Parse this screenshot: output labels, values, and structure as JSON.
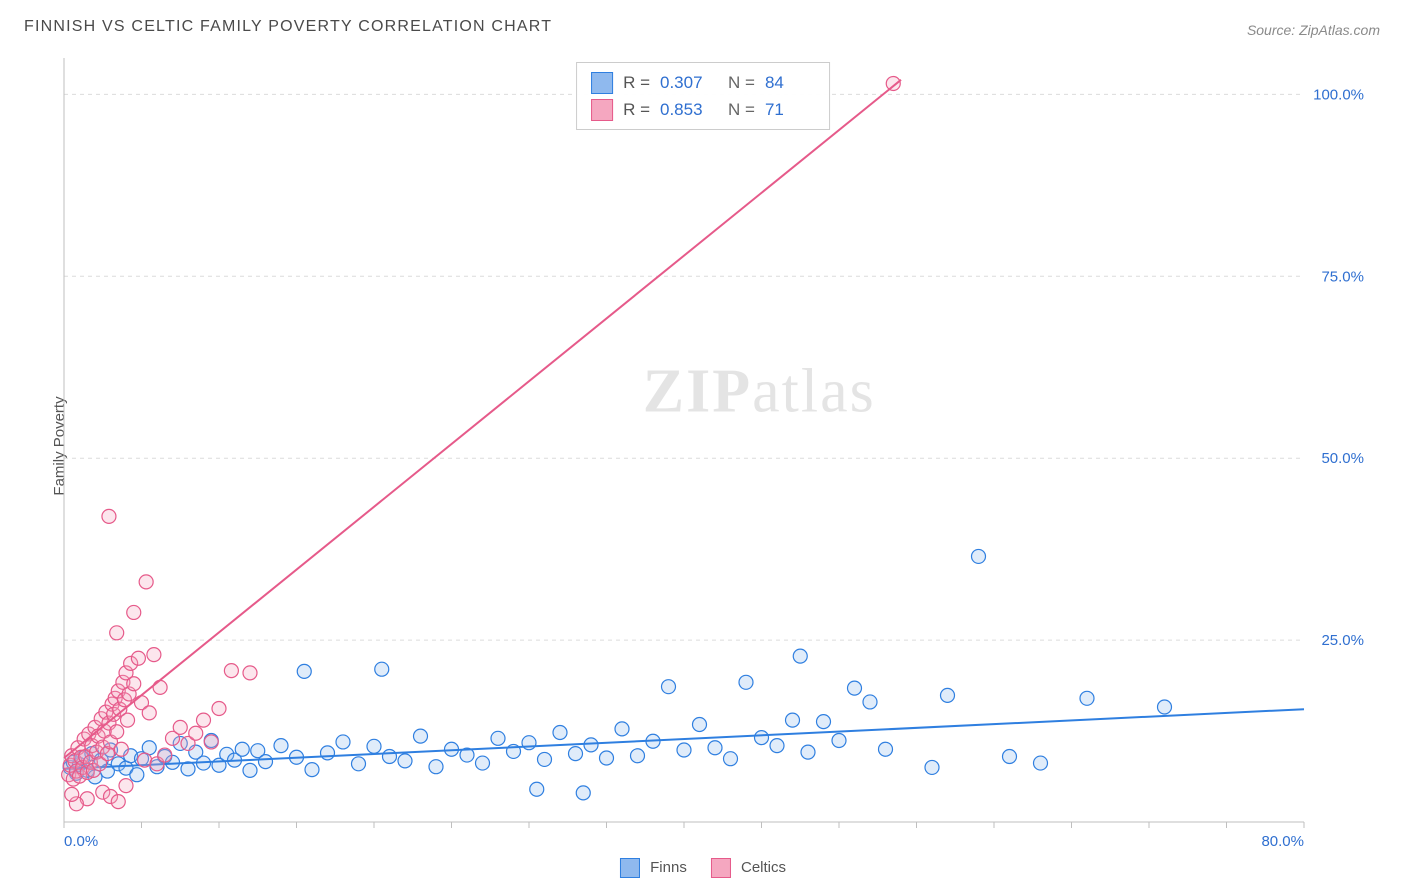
{
  "title": "FINNISH VS CELTIC FAMILY POVERTY CORRELATION CHART",
  "source_label": "Source: ZipAtlas.com",
  "ylabel": "Family Poverty",
  "watermark": {
    "zip": "ZIP",
    "atlas": "atlas"
  },
  "chart": {
    "type": "scatter",
    "xlim": [
      0,
      80
    ],
    "ylim": [
      0,
      105
    ],
    "xtick_step": 20,
    "xticks": [
      "0.0%",
      "80.0%"
    ],
    "ytick_step": 25,
    "yticks": [
      "25.0%",
      "50.0%",
      "75.0%",
      "100.0%"
    ],
    "grid_color": "#dcdcdc",
    "axis_color": "#bfbfbf",
    "background_color": "#ffffff",
    "tick_label_color": "#2f6fd0",
    "tick_label_fontsize": 15,
    "marker_radius": 7,
    "marker_stroke_width": 1.2,
    "marker_fill_opacity": 0.28,
    "trend_line_width": 2,
    "series": [
      {
        "id": "finns",
        "label": "Finns",
        "color": "#2f7fe0",
        "fill": "#8fb9ee",
        "R": "0.307",
        "N": "84",
        "trend": {
          "x1": 0,
          "y1": 7.3,
          "x2": 80,
          "y2": 15.5
        },
        "points": [
          [
            0.4,
            7.5
          ],
          [
            0.6,
            8.2
          ],
          [
            0.8,
            6.7
          ],
          [
            1.0,
            7.9
          ],
          [
            1.2,
            8.8
          ],
          [
            1.5,
            7.1
          ],
          [
            1.8,
            9.4
          ],
          [
            2.0,
            6.2
          ],
          [
            2.4,
            8.5
          ],
          [
            2.8,
            7.0
          ],
          [
            3.0,
            9.9
          ],
          [
            3.5,
            8.0
          ],
          [
            4.0,
            7.4
          ],
          [
            4.3,
            9.1
          ],
          [
            4.7,
            6.5
          ],
          [
            5.0,
            8.7
          ],
          [
            5.5,
            10.2
          ],
          [
            6.0,
            7.6
          ],
          [
            6.5,
            9.0
          ],
          [
            7.0,
            8.2
          ],
          [
            7.5,
            10.8
          ],
          [
            8.0,
            7.3
          ],
          [
            8.5,
            9.6
          ],
          [
            9.0,
            8.1
          ],
          [
            9.5,
            11.2
          ],
          [
            10.0,
            7.8
          ],
          [
            10.5,
            9.3
          ],
          [
            11.0,
            8.5
          ],
          [
            11.5,
            10.0
          ],
          [
            12.0,
            7.1
          ],
          [
            12.5,
            9.8
          ],
          [
            13.0,
            8.3
          ],
          [
            14.0,
            10.5
          ],
          [
            15.0,
            8.9
          ],
          [
            15.5,
            20.7
          ],
          [
            16.0,
            7.2
          ],
          [
            17.0,
            9.5
          ],
          [
            18.0,
            11.0
          ],
          [
            19.0,
            8.0
          ],
          [
            20.0,
            10.4
          ],
          [
            20.5,
            21.0
          ],
          [
            21.0,
            9.0
          ],
          [
            22.0,
            8.4
          ],
          [
            23.0,
            11.8
          ],
          [
            24.0,
            7.6
          ],
          [
            25.0,
            10.0
          ],
          [
            26.0,
            9.2
          ],
          [
            27.0,
            8.1
          ],
          [
            28.0,
            11.5
          ],
          [
            29.0,
            9.7
          ],
          [
            30.0,
            10.9
          ],
          [
            30.5,
            4.5
          ],
          [
            31.0,
            8.6
          ],
          [
            32.0,
            12.3
          ],
          [
            33.0,
            9.4
          ],
          [
            33.5,
            4.0
          ],
          [
            34.0,
            10.6
          ],
          [
            35.0,
            8.8
          ],
          [
            36.0,
            12.8
          ],
          [
            37.0,
            9.1
          ],
          [
            38.0,
            11.1
          ],
          [
            39.0,
            18.6
          ],
          [
            40.0,
            9.9
          ],
          [
            41.0,
            13.4
          ],
          [
            42.0,
            10.2
          ],
          [
            43.0,
            8.7
          ],
          [
            44.0,
            19.2
          ],
          [
            45.0,
            11.6
          ],
          [
            46.0,
            10.5
          ],
          [
            47.0,
            14.0
          ],
          [
            47.5,
            22.8
          ],
          [
            48.0,
            9.6
          ],
          [
            49.0,
            13.8
          ],
          [
            50.0,
            11.2
          ],
          [
            51.0,
            18.4
          ],
          [
            52.0,
            16.5
          ],
          [
            53.0,
            10.0
          ],
          [
            56.0,
            7.5
          ],
          [
            57.0,
            17.4
          ],
          [
            59.0,
            36.5
          ],
          [
            61.0,
            9.0
          ],
          [
            63.0,
            8.1
          ],
          [
            66.0,
            17.0
          ],
          [
            71.0,
            15.8
          ]
        ]
      },
      {
        "id": "celtics",
        "label": "Celtics",
        "color": "#e65a8a",
        "fill": "#f5a7c0",
        "R": "0.853",
        "N": "71",
        "trend": {
          "x1": 0,
          "y1": 8.8,
          "x2": 54,
          "y2": 102
        },
        "points": [
          [
            0.3,
            6.5
          ],
          [
            0.4,
            7.8
          ],
          [
            0.5,
            9.1
          ],
          [
            0.6,
            5.9
          ],
          [
            0.7,
            8.4
          ],
          [
            0.8,
            7.0
          ],
          [
            0.9,
            10.2
          ],
          [
            1.0,
            6.3
          ],
          [
            1.1,
            8.9
          ],
          [
            1.2,
            7.5
          ],
          [
            1.3,
            11.4
          ],
          [
            1.4,
            9.0
          ],
          [
            1.5,
            6.8
          ],
          [
            1.6,
            12.1
          ],
          [
            1.7,
            8.2
          ],
          [
            1.8,
            10.5
          ],
          [
            1.9,
            7.1
          ],
          [
            2.0,
            13.0
          ],
          [
            2.1,
            9.6
          ],
          [
            2.2,
            11.8
          ],
          [
            2.3,
            8.0
          ],
          [
            2.4,
            14.2
          ],
          [
            2.5,
            10.3
          ],
          [
            2.6,
            12.5
          ],
          [
            2.7,
            15.1
          ],
          [
            2.8,
            9.4
          ],
          [
            2.9,
            13.6
          ],
          [
            3.0,
            11.0
          ],
          [
            3.1,
            16.2
          ],
          [
            3.2,
            14.8
          ],
          [
            3.3,
            17.0
          ],
          [
            3.4,
            12.4
          ],
          [
            3.5,
            18.0
          ],
          [
            3.6,
            15.5
          ],
          [
            3.7,
            10.0
          ],
          [
            3.8,
            19.2
          ],
          [
            3.9,
            16.8
          ],
          [
            4.0,
            20.5
          ],
          [
            4.1,
            14.0
          ],
          [
            4.2,
            17.6
          ],
          [
            4.3,
            21.8
          ],
          [
            4.5,
            19.0
          ],
          [
            4.8,
            22.5
          ],
          [
            5.0,
            16.4
          ],
          [
            5.2,
            8.5
          ],
          [
            5.5,
            15.0
          ],
          [
            5.8,
            23.0
          ],
          [
            6.0,
            8.0
          ],
          [
            6.2,
            18.5
          ],
          [
            6.5,
            9.2
          ],
          [
            7.0,
            11.5
          ],
          [
            7.5,
            13.0
          ],
          [
            8.0,
            10.8
          ],
          [
            8.5,
            12.2
          ],
          [
            9.0,
            14.0
          ],
          [
            9.5,
            11.0
          ],
          [
            10.0,
            15.6
          ],
          [
            2.5,
            4.1
          ],
          [
            3.0,
            3.5
          ],
          [
            3.5,
            2.8
          ],
          [
            4.0,
            5.0
          ],
          [
            1.5,
            3.2
          ],
          [
            0.8,
            2.5
          ],
          [
            0.5,
            3.8
          ],
          [
            3.4,
            26.0
          ],
          [
            4.5,
            28.8
          ],
          [
            5.3,
            33.0
          ],
          [
            2.9,
            42.0
          ],
          [
            10.8,
            20.8
          ],
          [
            12.0,
            20.5
          ],
          [
            53.5,
            101.5
          ]
        ]
      }
    ]
  },
  "legend": {
    "series1": "Finns",
    "series2": "Celtics"
  }
}
